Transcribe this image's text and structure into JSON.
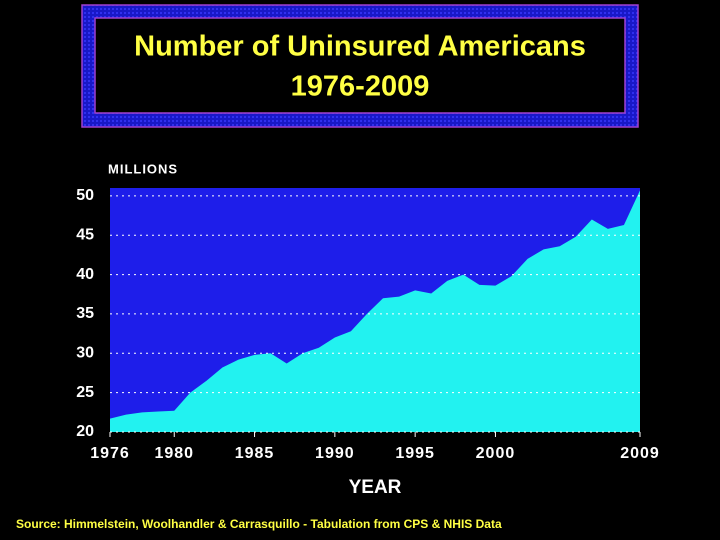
{
  "chart_data": {
    "type": "area",
    "title": "Number of Uninsured Americans",
    "subtitle": "1976-2009",
    "y_label": "MILLIONS",
    "x_label": "YEAR",
    "source": "Source: Himmelstein, Woolhandler & Carrasquillo - Tabulation from CPS & NHIS Data",
    "x": [
      1976,
      1977,
      1978,
      1979,
      1980,
      1981,
      1982,
      1983,
      1984,
      1985,
      1986,
      1987,
      1988,
      1989,
      1990,
      1991,
      1992,
      1993,
      1994,
      1995,
      1996,
      1997,
      1998,
      1999,
      2000,
      2001,
      2002,
      2003,
      2004,
      2005,
      2006,
      2007,
      2008,
      2009
    ],
    "values": [
      21.7,
      22.2,
      22.5,
      22.6,
      22.7,
      25,
      26.5,
      28.2,
      29.2,
      29.8,
      30.0,
      28.7,
      30.0,
      30.7,
      32.0,
      32.8,
      35.0,
      37.0,
      37.2,
      38.0,
      37.6,
      39.2,
      40.0,
      38.7,
      38.6,
      39.8,
      42.0,
      43.2,
      43.6,
      44.8,
      47.0,
      45.8,
      46.3,
      50.7
    ],
    "color": "#22f2f0",
    "background": "#1e1eea",
    "xlim": [
      1976,
      2009
    ],
    "xticks": [
      1976,
      1980,
      1985,
      1990,
      1995,
      2000,
      2009
    ],
    "ylim": [
      20,
      51
    ],
    "yticks": [
      20,
      25,
      30,
      35,
      40,
      45,
      50
    ],
    "grid": true
  }
}
